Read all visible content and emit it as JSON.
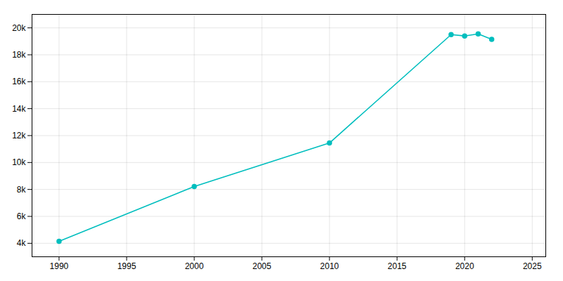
{
  "chart_data": {
    "type": "line",
    "x": [
      1990,
      2000,
      2010,
      2019,
      2020,
      2021,
      2022
    ],
    "values": [
      4150,
      8220,
      11450,
      19500,
      19400,
      19550,
      19150
    ],
    "color": "#00BEBE",
    "marker": "circle",
    "xlim": [
      1988,
      2026
    ],
    "xticks": [
      1990,
      1995,
      2000,
      2005,
      2010,
      2015,
      2020,
      2025
    ],
    "ylim": [
      3000,
      21000
    ],
    "yticks": [
      {
        "value": 4000,
        "label": "4k"
      },
      {
        "value": 6000,
        "label": "6k"
      },
      {
        "value": 8000,
        "label": "8k"
      },
      {
        "value": 10000,
        "label": "10k"
      },
      {
        "value": 12000,
        "label": "12k"
      },
      {
        "value": 14000,
        "label": "14k"
      },
      {
        "value": 16000,
        "label": "16k"
      },
      {
        "value": 18000,
        "label": "18k"
      },
      {
        "value": 20000,
        "label": "20k"
      }
    ],
    "grid": true
  }
}
